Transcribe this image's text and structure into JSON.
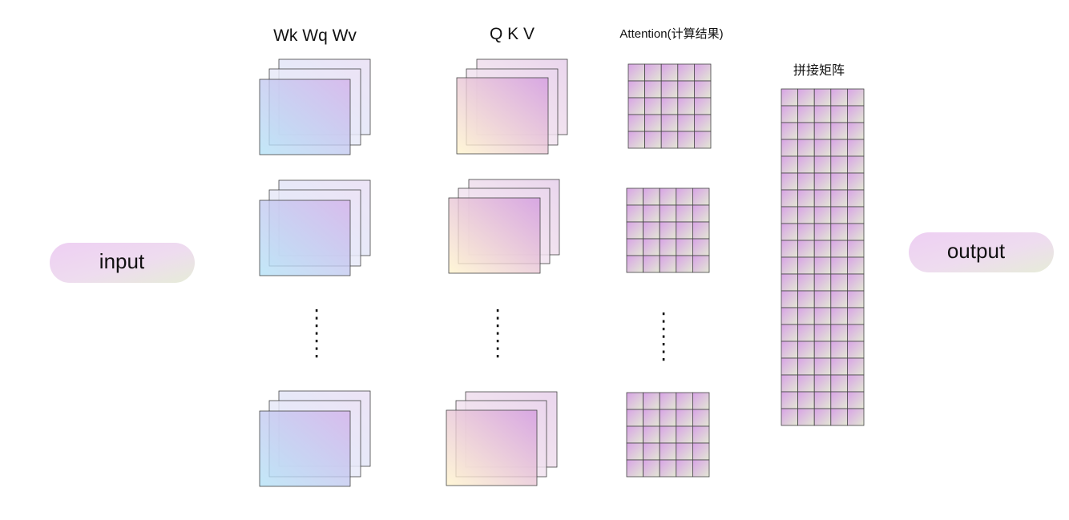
{
  "input": {
    "label": "input"
  },
  "output": {
    "label": "output"
  },
  "columns": {
    "weights": {
      "title": "Wk Wq Wv"
    },
    "qkv": {
      "title": "Q K V"
    },
    "attention": {
      "title": "Attention(计算结果)"
    },
    "concat": {
      "title": "拼接矩阵"
    }
  },
  "colors": {
    "pill_left": "#eecff3",
    "pill_right": "#e6ecd8",
    "weight_light": "#b4e2f6",
    "weight_dark": "#d3b2ea",
    "qkv_light": "#fff4cc",
    "qkv_dark": "#d39be0",
    "cell_pink": "#d8a3e6",
    "cell_green": "#e3e8d4",
    "stroke": "#444444"
  }
}
